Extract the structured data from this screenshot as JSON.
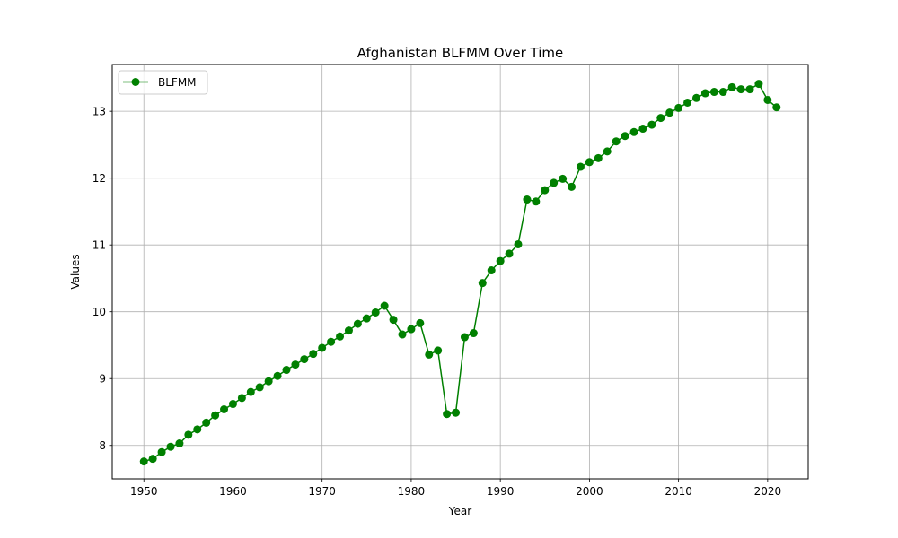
{
  "chart_data": {
    "type": "line",
    "title": "Afghanistan BLFMM Over Time",
    "xlabel": "Year",
    "ylabel": "Values",
    "xlim": [
      1946.45,
      2024.55
    ],
    "ylim": [
      7.5,
      13.7
    ],
    "x_ticks": [
      1950,
      1960,
      1970,
      1980,
      1990,
      2000,
      2010,
      2020
    ],
    "y_ticks": [
      8,
      9,
      10,
      11,
      12,
      13
    ],
    "grid": true,
    "legend_position": "top-left",
    "series": [
      {
        "name": "BLFMM",
        "color": "#008000",
        "marker": "circle",
        "x": [
          1950,
          1951,
          1952,
          1953,
          1954,
          1955,
          1956,
          1957,
          1958,
          1959,
          1960,
          1961,
          1962,
          1963,
          1964,
          1965,
          1966,
          1967,
          1968,
          1969,
          1970,
          1971,
          1972,
          1973,
          1974,
          1975,
          1976,
          1977,
          1978,
          1979,
          1980,
          1981,
          1982,
          1983,
          1984,
          1985,
          1986,
          1987,
          1988,
          1989,
          1990,
          1991,
          1992,
          1993,
          1994,
          1995,
          1996,
          1997,
          1998,
          1999,
          2000,
          2001,
          2002,
          2003,
          2004,
          2005,
          2006,
          2007,
          2008,
          2009,
          2010,
          2011,
          2012,
          2013,
          2014,
          2015,
          2016,
          2017,
          2018,
          2019,
          2020,
          2021
        ],
        "y": [
          7.76,
          7.8,
          7.9,
          7.98,
          8.03,
          8.16,
          8.24,
          8.34,
          8.45,
          8.54,
          8.62,
          8.71,
          8.8,
          8.87,
          8.96,
          9.04,
          9.13,
          9.21,
          9.29,
          9.37,
          9.46,
          9.55,
          9.63,
          9.72,
          9.82,
          9.9,
          9.99,
          10.09,
          9.88,
          9.66,
          9.74,
          9.83,
          9.36,
          9.42,
          8.47,
          8.49,
          9.62,
          9.68,
          10.43,
          10.62,
          10.76,
          10.87,
          11.01,
          11.68,
          11.65,
          11.82,
          11.93,
          11.99,
          11.87,
          12.17,
          12.24,
          12.3,
          12.4,
          12.55,
          12.63,
          12.69,
          12.74,
          12.8,
          12.9,
          12.98,
          13.05,
          13.13,
          13.2,
          13.27,
          13.29,
          13.29,
          13.36,
          13.33,
          13.33,
          13.41,
          13.17,
          13.06
        ]
      }
    ]
  }
}
